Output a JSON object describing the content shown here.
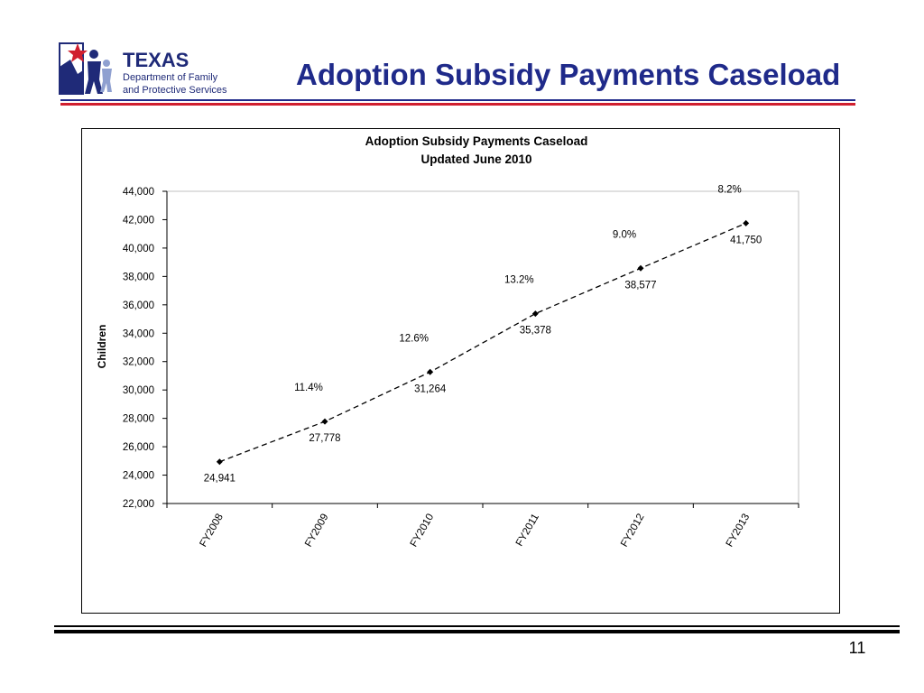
{
  "slide": {
    "title": "Adoption Subsidy Payments Caseload",
    "page_number": "11",
    "logo": {
      "line1": "TEXAS",
      "line2": "Department of Family",
      "line3": "and Protective Services"
    }
  },
  "colors": {
    "title": "#1f2a8a",
    "accent_red": "#d01f2f",
    "logo_blue": "#1f2a78"
  },
  "chart_data": {
    "type": "line",
    "title": "Adoption Subsidy Payments Caseload",
    "subtitle": "Updated June 2010",
    "xlabel": "",
    "ylabel": "Children",
    "categories": [
      "FY2008",
      "FY2009",
      "FY2010",
      "FY2011",
      "FY2012",
      "FY2013"
    ],
    "series": [
      {
        "values": [
          24941,
          27778,
          31264,
          35378,
          38577,
          41750
        ],
        "value_labels": [
          "24,941",
          "27,778",
          "31,264",
          "35,378",
          "38,577",
          "41,750"
        ],
        "line_style": "dashed",
        "marker": "diamond",
        "color": "#000000"
      }
    ],
    "growth_labels": [
      "",
      "11.4%",
      "12.6%",
      "13.2%",
      "9.0%",
      "8.2%"
    ],
    "ylim": [
      22000,
      44000
    ],
    "yticks": [
      22000,
      24000,
      26000,
      28000,
      30000,
      32000,
      34000,
      36000,
      38000,
      40000,
      42000,
      44000
    ],
    "ytick_labels": [
      "22,000",
      "24,000",
      "26,000",
      "28,000",
      "30,000",
      "32,000",
      "34,000",
      "36,000",
      "38,000",
      "40,000",
      "42,000",
      "44,000"
    ],
    "grid": false,
    "legend": "none"
  }
}
